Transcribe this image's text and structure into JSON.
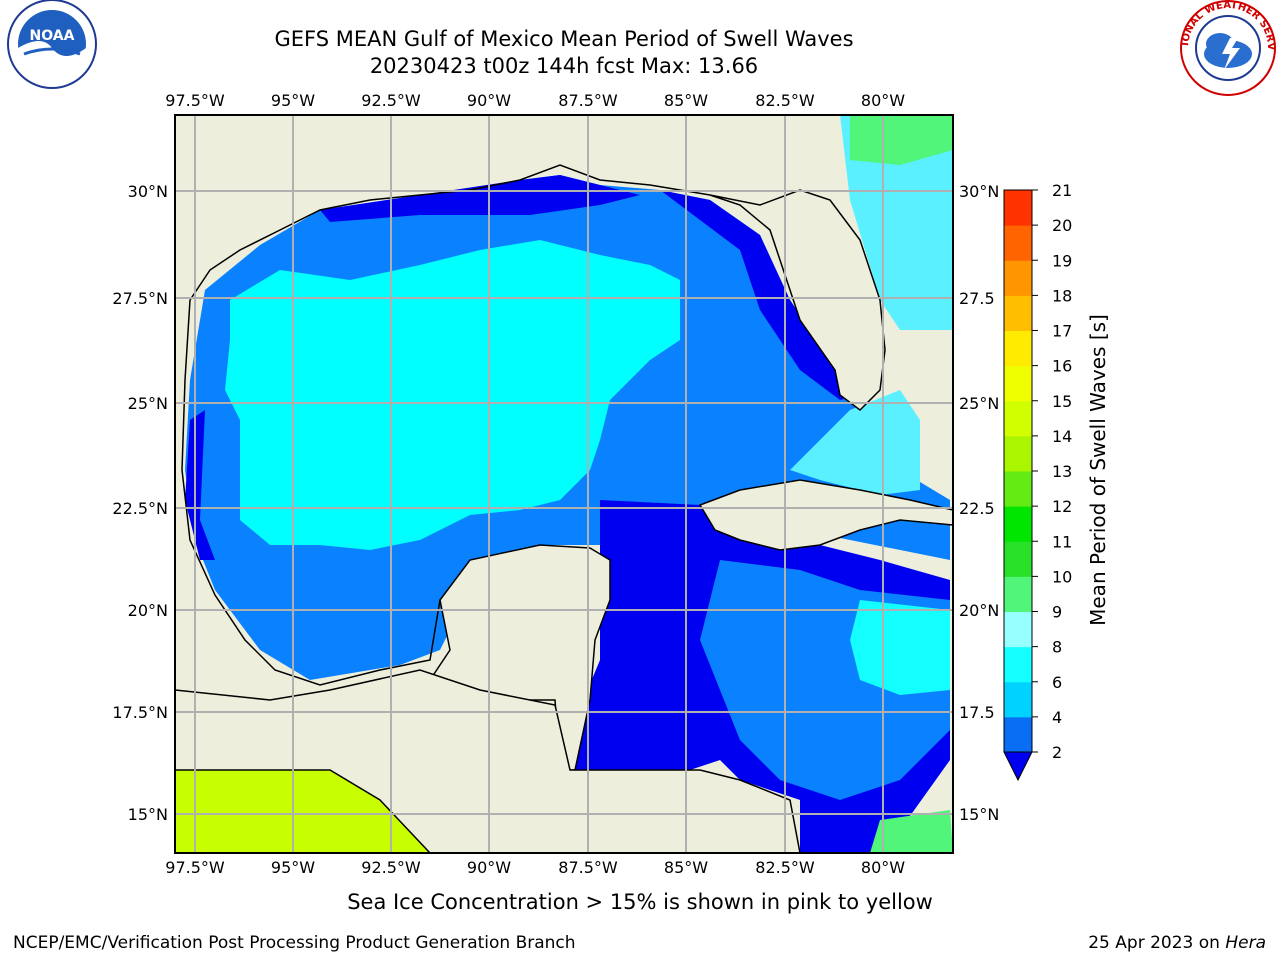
{
  "title": {
    "line1": "GEFS MEAN Gulf of Mexico Mean Period of Swell Waves",
    "line2": "20230423 t00z 144h fcst   Max: 13.66"
  },
  "map": {
    "lon_labels": [
      "97.5°W",
      "95°W",
      "92.5°W",
      "90°W",
      "87.5°W",
      "85°W",
      "82.5°W",
      "80°W"
    ],
    "lat_labels_left": [
      "30°N",
      "27.5°N",
      "25°N",
      "22.5°N",
      "20°N",
      "17.5°N",
      "15°N"
    ],
    "lat_labels_right": [
      "30°N",
      "27.5",
      "25°N",
      "22.5",
      "20°N",
      "17.5",
      "15°N"
    ]
  },
  "colorbar": {
    "label": "Mean Period of Swell Waves [s]",
    "levels": [
      2,
      4,
      6,
      8,
      9,
      10,
      11,
      12,
      13,
      14,
      15,
      16,
      17,
      18,
      19,
      20,
      21
    ],
    "colors": [
      "#0a6ef5",
      "#00d2ff",
      "#14ffff",
      "#96ffff",
      "#50f57a",
      "#28e128",
      "#00e600",
      "#64eb14",
      "#aaf500",
      "#d2ff00",
      "#f0ff00",
      "#ffeb00",
      "#ffbe00",
      "#ff9600",
      "#ff6400",
      "#ff3200"
    ],
    "under_color": "#0000f0"
  },
  "footnote": "Sea Ice Concentration > 15% is shown in pink to yellow",
  "credit": "NCEP/EMC/Verification Post Processing Product Generation Branch",
  "date": {
    "text": "25 Apr 2023 on ",
    "host": "Hera"
  },
  "logos": {
    "left": "NOAA",
    "right": "NATIONAL WEATHER SERVICE"
  },
  "palette": {
    "land": "#eeeedd",
    "deep_blue": "#0000f0",
    "mid_blue": "#0a82ff",
    "cyan": "#00ffff",
    "light_cyan": "#5af0ff",
    "yellow_green": "#c8ff00"
  }
}
